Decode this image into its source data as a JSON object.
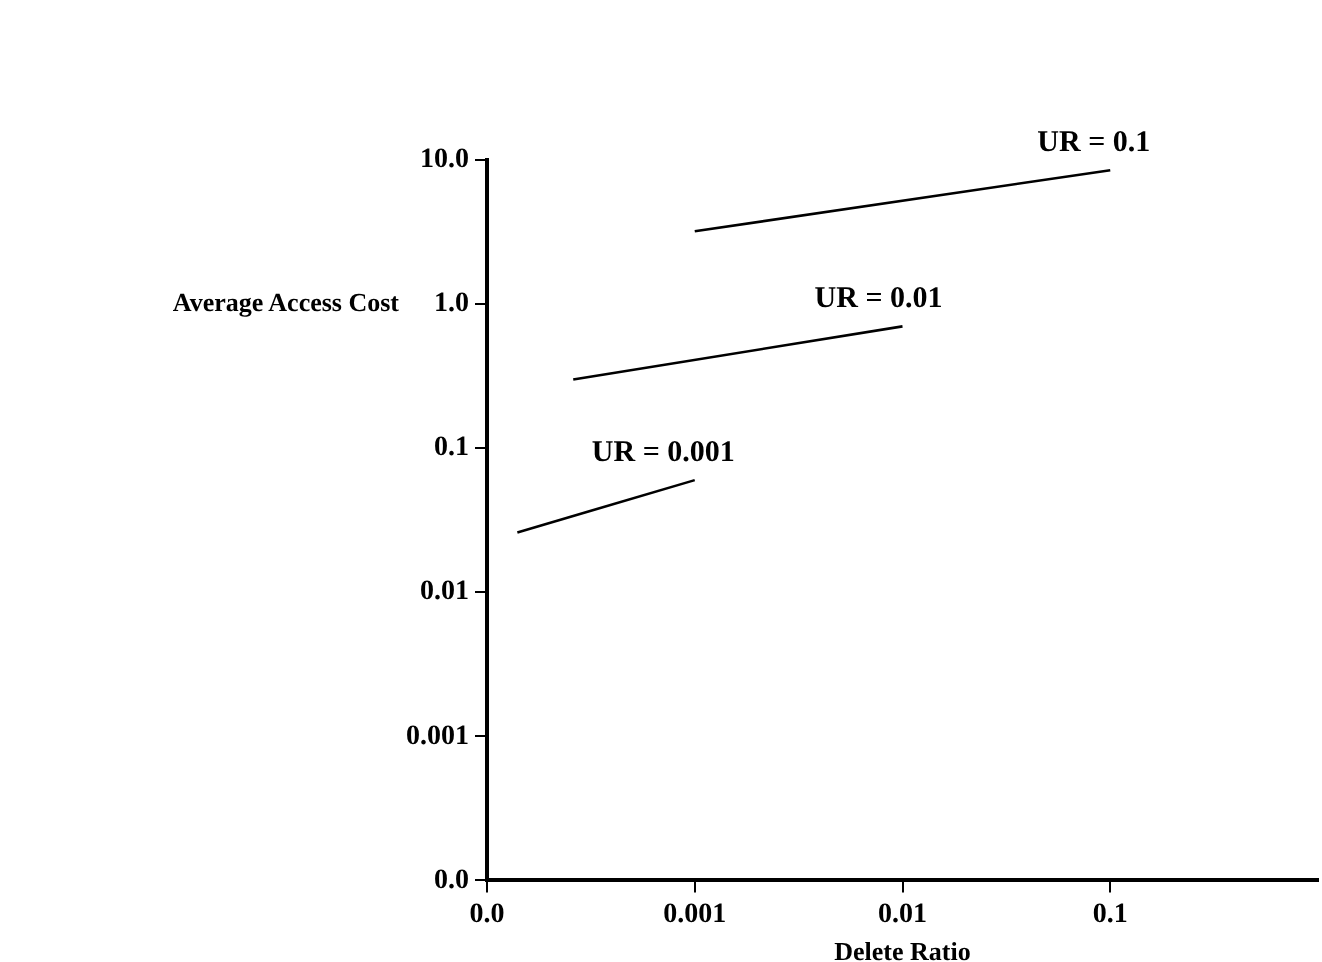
{
  "chart_data": {
    "type": "line",
    "xlabel": "Delete Ratio",
    "ylabel": "Average Access Cost",
    "log": "xy",
    "grid": false,
    "legend": false,
    "marker": "none",
    "line_style": "solid",
    "xlim": [
      0.0001,
      1
    ],
    "xticks": [
      {
        "value": 0.0001,
        "label": "0.0"
      },
      0.001,
      0.01,
      0.1
    ],
    "ylim": [
      0.0001,
      10
    ],
    "yticks": [
      {
        "value": 0.0001,
        "label": "0.0"
      },
      0.001,
      0.01,
      0.1,
      {
        "value": 1,
        "label": "1.0"
      },
      {
        "value": 10,
        "label": "10.0"
      }
    ],
    "series": [
      {
        "color": "#000000",
        "x": [
          0.001,
          0.1
        ],
        "values": [
          3.2,
          8.5
        ]
      },
      {
        "color": "#000000",
        "x": [
          0.00026,
          0.01
        ],
        "values": [
          0.3,
          0.7
        ]
      },
      {
        "color": "#000000",
        "x": [
          0.00014,
          0.001
        ],
        "values": [
          0.026,
          0.06
        ]
      }
    ],
    "annotations": [
      {
        "text": "UR = 0.1",
        "x": 0.1,
        "y": 8.5
      },
      {
        "text": "UR = 0.01",
        "x": 0.01,
        "y": 0.7
      },
      {
        "text": "UR = 0.001",
        "x": 0.001,
        "y": 0.06
      }
    ]
  }
}
